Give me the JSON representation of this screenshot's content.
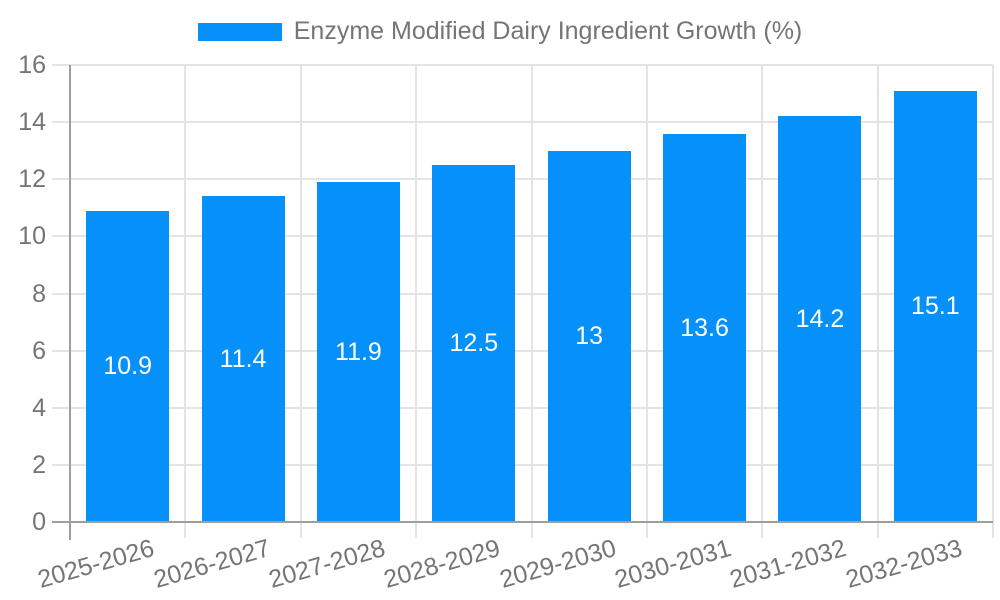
{
  "legend": {
    "label": "Enzyme Modified Dairy Ingredient Growth (%)"
  },
  "chart_data": {
    "type": "bar",
    "title": "",
    "categories": [
      "2025-2026",
      "2026-2027",
      "2027-2028",
      "2028-2029",
      "2029-2030",
      "2030-2031",
      "2031-2032",
      "2032-2033"
    ],
    "series": [
      {
        "name": "Enzyme Modified Dairy Ingredient Growth (%)",
        "values": [
          10.9,
          11.4,
          11.9,
          12.5,
          13,
          13.6,
          14.2,
          15.1
        ],
        "value_labels": [
          "10.9",
          "11.4",
          "11.9",
          "12.5",
          "13",
          "13.6",
          "14.2",
          "15.1"
        ]
      }
    ],
    "xlabel": "",
    "ylabel": "",
    "ylim": [
      0,
      16
    ],
    "yticks": [
      0,
      2,
      4,
      6,
      8,
      10,
      12,
      14,
      16
    ],
    "grid": true,
    "legend_position": "top",
    "x_tick_rotation_deg": -16,
    "colors": {
      "bar": "#0590FA",
      "value_label": "#FFFFFF",
      "grid": "#E4E4E4",
      "axis": "#9E9E9E",
      "tick_label": "#757575",
      "background": "#FFFFFF"
    }
  }
}
